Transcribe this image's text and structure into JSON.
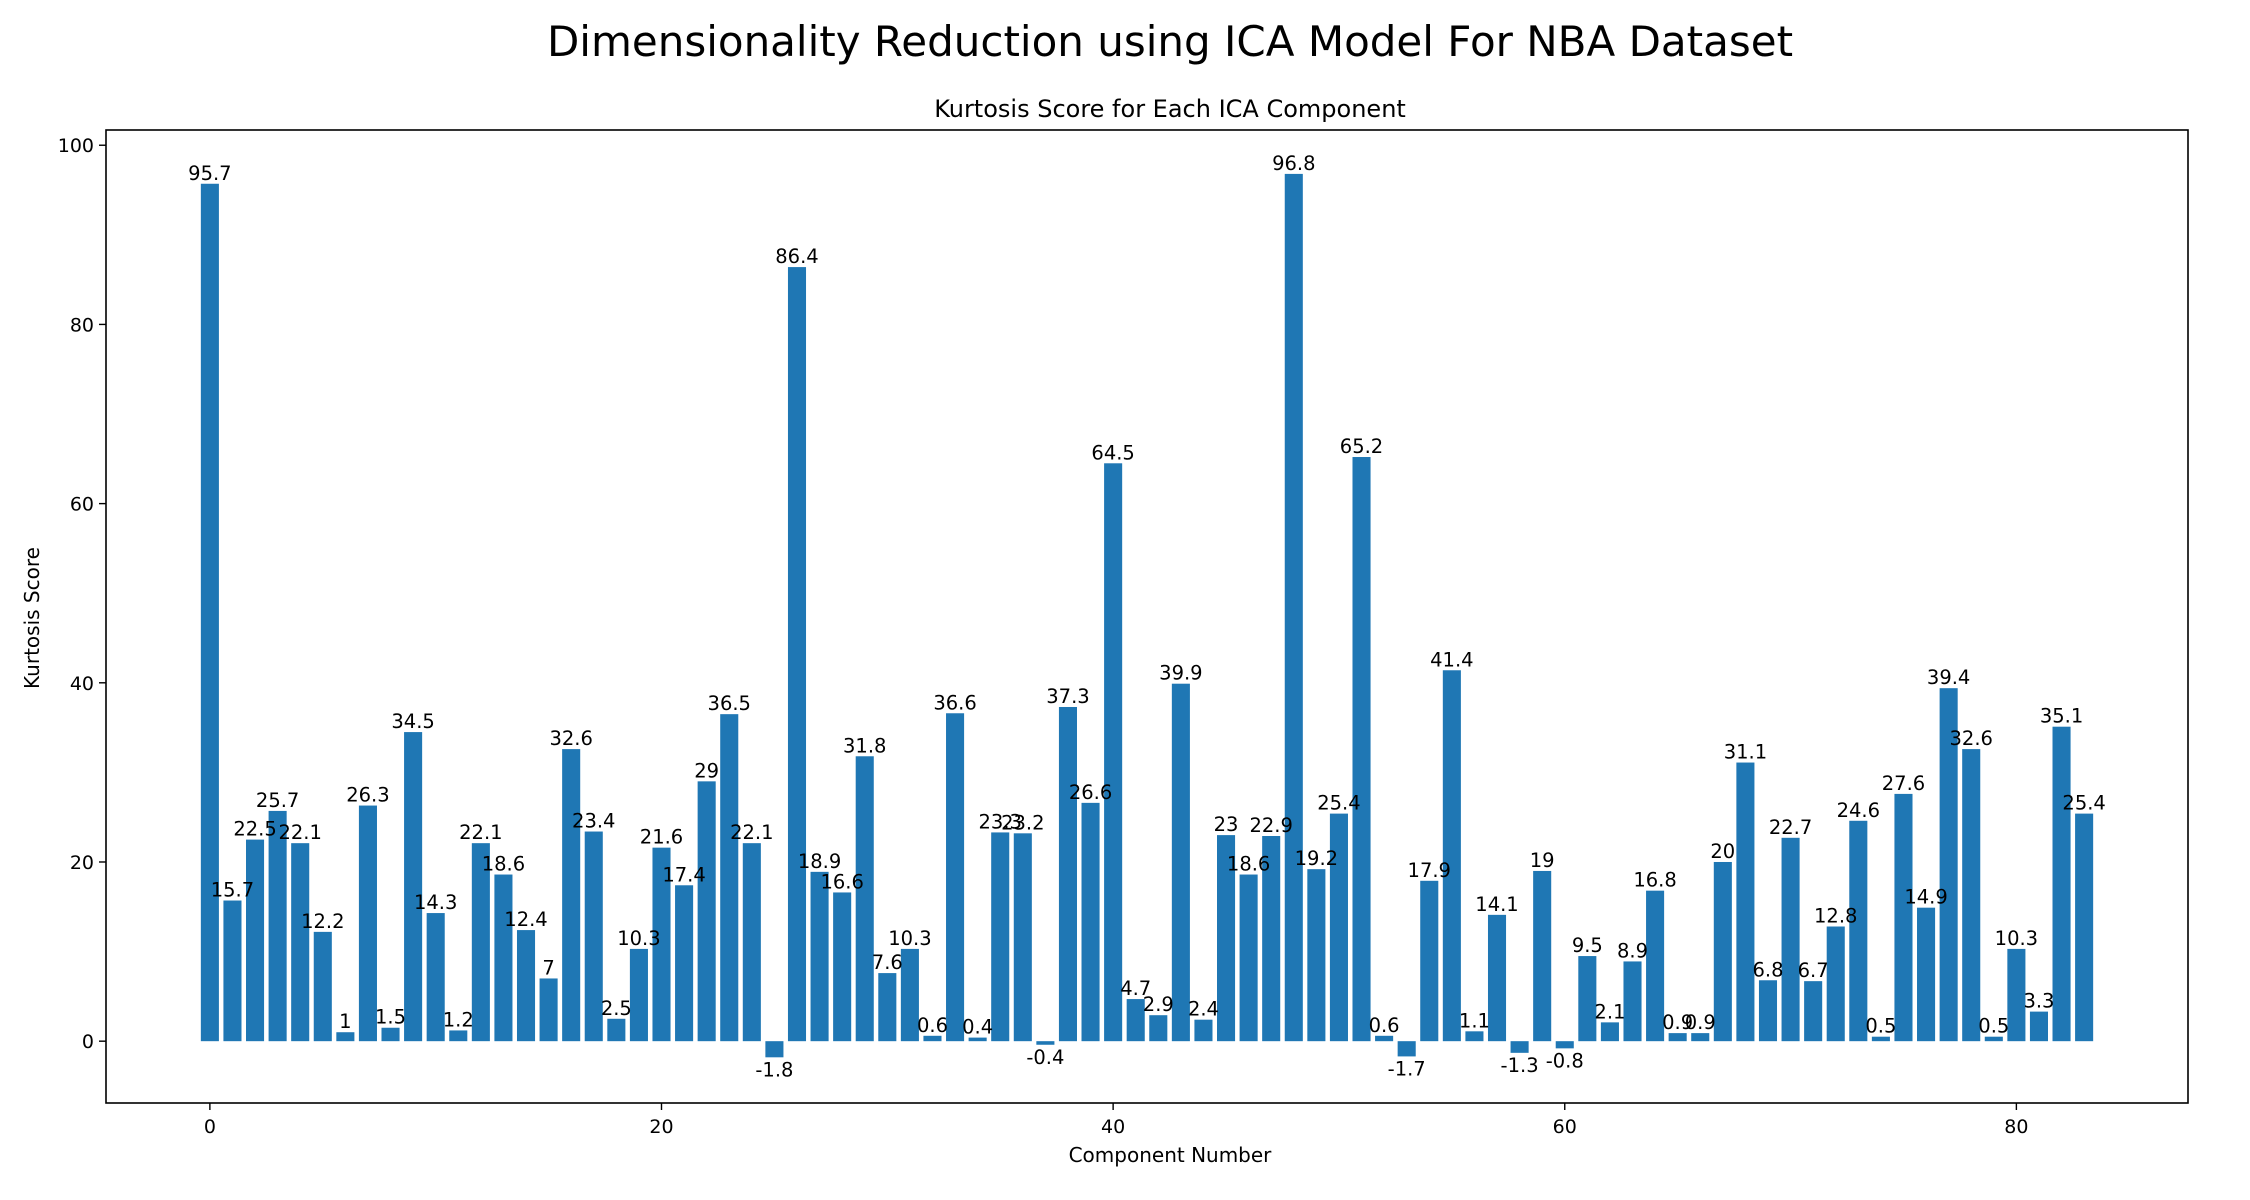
{
  "page_title": "Dimensionality Reduction using ICA Model For NBA Dataset",
  "chart_data": {
    "type": "bar",
    "title": "Kurtosis Score for Each ICA Component",
    "xlabel": "Component Number",
    "ylabel": "Kurtosis Score",
    "bar_color": "#1f77b4",
    "x": [
      0,
      1,
      2,
      3,
      4,
      5,
      6,
      7,
      8,
      9,
      10,
      11,
      12,
      13,
      14,
      15,
      16,
      17,
      18,
      19,
      20,
      21,
      22,
      23,
      24,
      25,
      26,
      27,
      28,
      29,
      30,
      31,
      32,
      33,
      34,
      35,
      36,
      37,
      38,
      39,
      40,
      41,
      42,
      43,
      44,
      45,
      46,
      47,
      48,
      49,
      50,
      51,
      52,
      53,
      54,
      55,
      56,
      57,
      58,
      59,
      60,
      61,
      62,
      63,
      64,
      65,
      66,
      67,
      68,
      69,
      70,
      71,
      72,
      73,
      74,
      75,
      76,
      77,
      78,
      79,
      80,
      81,
      82,
      83
    ],
    "values": [
      95.7,
      15.7,
      22.5,
      25.7,
      22.1,
      12.2,
      1,
      26.3,
      1.5,
      34.5,
      14.3,
      1.2,
      22.1,
      18.6,
      12.4,
      7,
      32.6,
      23.4,
      2.5,
      10.3,
      21.6,
      17.4,
      29,
      36.5,
      22.1,
      -1.8,
      86.4,
      18.9,
      16.6,
      31.8,
      7.6,
      10.3,
      0.6,
      36.6,
      0.4,
      23.3,
      23.2,
      -0.4,
      37.3,
      26.6,
      64.5,
      4.7,
      2.9,
      39.9,
      2.4,
      23,
      18.6,
      22.9,
      96.8,
      19.2,
      25.4,
      65.2,
      0.6,
      -1.7,
      17.9,
      41.4,
      1.1,
      14.1,
      -1.3,
      19,
      -0.8,
      9.5,
      2.1,
      8.9,
      16.8,
      0.9,
      0.9,
      20,
      31.1,
      6.8,
      22.7,
      6.7,
      12.8,
      24.6,
      0.5,
      27.6,
      14.9,
      39.4,
      32.6,
      0.5,
      10.3,
      3.3,
      35.1,
      25.4
    ],
    "labels": [
      "95.7",
      "15.7",
      "22.5",
      "25.7",
      "22.1",
      "12.2",
      "1",
      "26.3",
      "1.5",
      "34.5",
      "14.3",
      "1.2",
      "22.1",
      "18.6",
      "12.4",
      "7",
      "32.6",
      "23.4",
      "2.5",
      "10.3",
      "21.6",
      "17.4",
      "29",
      "36.5",
      "22.1",
      "-1.8",
      "86.4",
      "18.9",
      "16.6",
      "31.8",
      "7.6",
      "10.3",
      "0.6",
      "36.6",
      "0.4",
      "23.3",
      "23.2",
      "-0.4",
      "37.3",
      "26.6",
      "64.5",
      "4.7",
      "2.9",
      "39.9",
      "2.4",
      "23",
      "18.6",
      "22.9",
      "96.8",
      "19.2",
      "25.4",
      "65.2",
      "0.6",
      "-1.7",
      "17.9",
      "41.4",
      "1.1",
      "14.1",
      "-1.3",
      "19",
      "-0.8",
      "9.5",
      "2.1",
      "8.9",
      "16.8",
      "0.9",
      "0.9",
      "20",
      "31.1",
      "6.8",
      "22.7",
      "6.7",
      "12.8",
      "24.6",
      "0.5",
      "27.6",
      "14.9",
      "39.4",
      "32.6",
      "0.5",
      "10.3",
      "3.3",
      "35.1",
      "25.4"
    ],
    "xlim": [
      -4.6,
      87.6
    ],
    "ylim": [
      -6.9,
      101.7
    ],
    "xticks": [
      0,
      20,
      40,
      60,
      80
    ],
    "xtick_labels": [
      "0",
      "20",
      "40",
      "60",
      "80"
    ],
    "yticks": [
      0,
      20,
      40,
      60,
      80,
      100
    ],
    "ytick_labels": [
      "0",
      "20",
      "40",
      "60",
      "80",
      "100"
    ],
    "grid": false,
    "legend": "none"
  }
}
